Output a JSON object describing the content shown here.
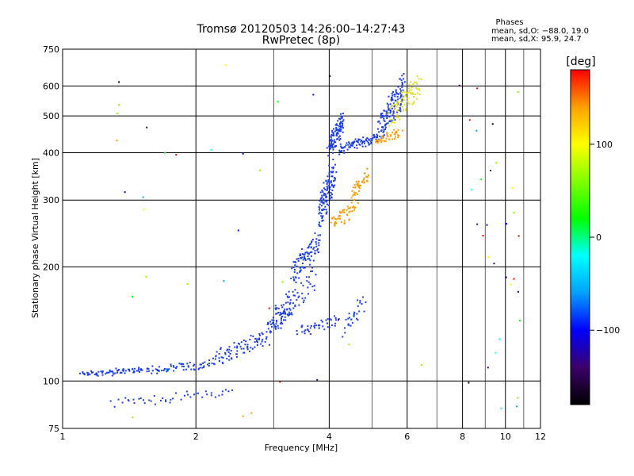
{
  "chart_data": {
    "type": "scatter",
    "title": "Tromsø 20120503 14:26:00–14:27:43",
    "subtitle": "RwPretec (8p)",
    "xlabel": "Frequency [MHz]",
    "ylabel": "Stationary phase Virtual Height [km]",
    "x_scale": "log",
    "y_scale": "log",
    "xlim": [
      1,
      12
    ],
    "ylim": [
      75,
      750
    ],
    "x_ticks": [
      1,
      2,
      4,
      6,
      8,
      10,
      12
    ],
    "x_tick_labels": [
      "1",
      "2",
      "4",
      "6",
      "8",
      "10",
      "12"
    ],
    "x_minor_lines": [
      3,
      5,
      7,
      9,
      11
    ],
    "y_ticks": [
      75,
      100,
      200,
      300,
      400,
      500,
      600,
      750
    ],
    "y_tick_labels": [
      "75",
      "100",
      "200",
      "300",
      "400",
      "500",
      "600",
      "750"
    ],
    "grid": true,
    "phases_box": {
      "title": "Phases",
      "line1": "mean, sd,O: −88.0, 19.0",
      "line2": "mean, sd,X:  95.9, 24.7"
    },
    "colorbar": {
      "label": "[deg]",
      "range": [
        -180,
        180
      ],
      "ticks": [
        100,
        0,
        -100
      ],
      "tick_labels": [
        "100",
        "0",
        "−100"
      ],
      "colormap": [
        "#000000",
        "#3b006a",
        "#0000ff",
        "#00a0ff",
        "#00ffff",
        "#00ff00",
        "#80ff00",
        "#ffff00",
        "#ffa000",
        "#ff0000"
      ]
    },
    "series": [
      {
        "mode": "O",
        "color": "#1a3cf0",
        "segments": [
          {
            "f": [
              1.1,
              1.5
            ],
            "h": [
              103,
              108
            ],
            "n": 70
          },
          {
            "f": [
              1.5,
              2.2
            ],
            "h": [
              104,
              113
            ],
            "n": 70
          },
          {
            "f": [
              2.2,
              2.9
            ],
            "h": [
              110,
              135
            ],
            "n": 80
          },
          {
            "f": [
              2.9,
              3.3
            ],
            "h": [
              130,
              165
            ],
            "n": 60
          },
          {
            "f": [
              3.3,
              3.8
            ],
            "h": [
              180,
              250
            ],
            "n": 90
          },
          {
            "f": [
              3.8,
              4.1
            ],
            "h": [
              250,
              390
            ],
            "n": 110
          },
          {
            "f": [
              4.0,
              4.3
            ],
            "h": [
              390,
              510
            ],
            "n": 100
          },
          {
            "f": [
              4.2,
              5.2
            ],
            "h": [
              400,
              450
            ],
            "n": 90
          },
          {
            "f": [
              5.2,
              5.9
            ],
            "h": [
              430,
              640
            ],
            "n": 140
          }
        ]
      },
      {
        "mode": "O-scatter",
        "color": "#2040e0",
        "segments": [
          {
            "f": [
              1.3,
              2.4
            ],
            "h": [
              85,
              96
            ],
            "n": 45
          },
          {
            "f": [
              3.0,
              3.7
            ],
            "h": [
              135,
              200
            ],
            "n": 60
          },
          {
            "f": [
              3.4,
              4.2
            ],
            "h": [
              130,
              150
            ],
            "n": 45
          },
          {
            "f": [
              4.3,
              4.8
            ],
            "h": [
              130,
              170
            ],
            "n": 30
          }
        ]
      },
      {
        "mode": "X",
        "color": "#ff9a00",
        "segments": [
          {
            "f": [
              4.05,
              4.6
            ],
            "h": [
              250,
              300
            ],
            "n": 50
          },
          {
            "f": [
              4.5,
              4.9
            ],
            "h": [
              300,
              370
            ],
            "n": 40
          },
          {
            "f": [
              5.1,
              5.8
            ],
            "h": [
              420,
              460
            ],
            "n": 40
          }
        ]
      },
      {
        "mode": "X-high",
        "color": "#e0e020",
        "segments": [
          {
            "f": [
              5.5,
              6.4
            ],
            "h": [
              460,
              650
            ],
            "n": 80
          }
        ]
      },
      {
        "mode": "noise",
        "color": "#3050ff",
        "segments": [
          {
            "f": [
              8.2,
              10.8
            ],
            "h": [
              80,
              660
            ],
            "n": 30
          },
          {
            "f": [
              1.2,
              8.0
            ],
            "h": [
              80,
              700
            ],
            "n": 35
          }
        ]
      }
    ]
  }
}
